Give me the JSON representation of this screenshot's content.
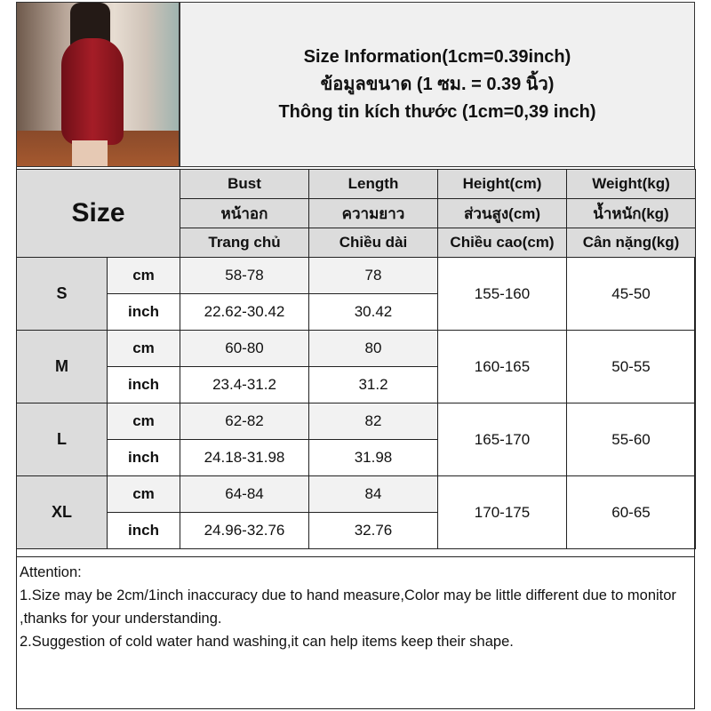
{
  "title": {
    "line_en": "Size Information(1cm=0.39inch)",
    "line_th": "ข้อมูลขนาด (1 ซม. = 0.39 นิ้ว)",
    "line_vi": "Thông tin kích thước (1cm=0,39 inch)"
  },
  "table": {
    "size_label": "Size",
    "headers": [
      [
        "Bust",
        "หน้าอก",
        "Trang chủ"
      ],
      [
        "Length",
        "ความยาว",
        "Chiều dài"
      ],
      [
        "Height(cm)",
        "ส่วนสูง(cm)",
        "Chiều cao(cm)"
      ],
      [
        "Weight(kg)",
        "น้ำหนัก(kg)",
        "Cân nặng(kg)"
      ]
    ],
    "unit_cm": "cm",
    "unit_inch": "inch",
    "rows": [
      {
        "size": "S",
        "bust_cm": "58-78",
        "length_cm": "78",
        "bust_inch": "22.62-30.42",
        "length_inch": "30.42",
        "height": "155-160",
        "weight": "45-50"
      },
      {
        "size": "M",
        "bust_cm": "60-80",
        "length_cm": "80",
        "bust_inch": "23.4-31.2",
        "length_inch": "31.2",
        "height": "160-165",
        "weight": "50-55"
      },
      {
        "size": "L",
        "bust_cm": "62-82",
        "length_cm": "82",
        "bust_inch": "24.18-31.98",
        "length_inch": "31.98",
        "height": "165-170",
        "weight": "55-60"
      },
      {
        "size": "XL",
        "bust_cm": "64-84",
        "length_cm": "84",
        "bust_inch": "24.96-32.76",
        "length_inch": "32.76",
        "height": "170-175",
        "weight": "60-65"
      }
    ]
  },
  "attention": {
    "heading": "Attention:",
    "items": [
      "1.Size may be 2cm/1inch inaccuracy due to hand measure,Color may be little different due to monitor ,thanks for your understanding.",
      "2.Suggestion of cold water hand washing,it can help items keep their shape."
    ]
  }
}
